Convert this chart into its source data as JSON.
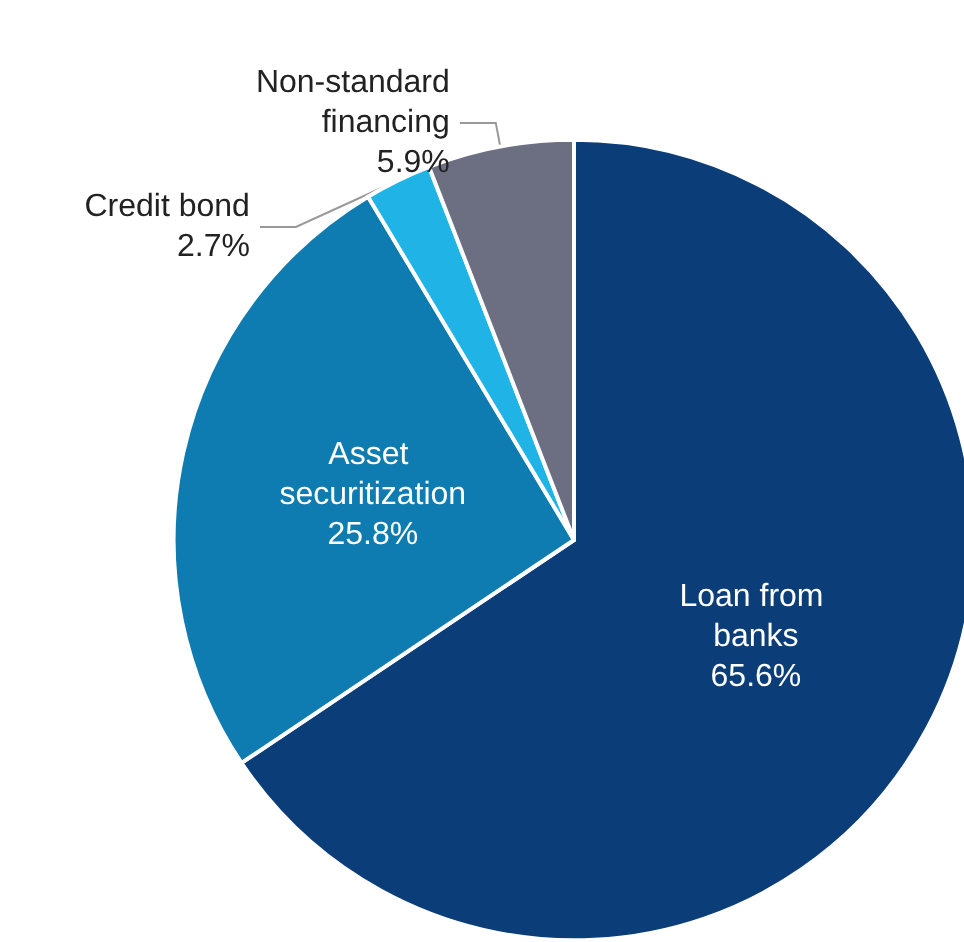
{
  "chart_data": {
    "type": "pie",
    "categories": [
      "Loan from banks",
      "Asset securitization",
      "Credit bond",
      "Non-standard financing"
    ],
    "values": [
      65.6,
      25.8,
      2.7,
      5.9
    ],
    "colors": [
      "#0b3d78",
      "#0e7cb0",
      "#1fb3e6",
      "#6c6f81"
    ],
    "value_labels": [
      "65.6%",
      "25.8%",
      "2.7%",
      "5.9%"
    ],
    "legend": false
  }
}
